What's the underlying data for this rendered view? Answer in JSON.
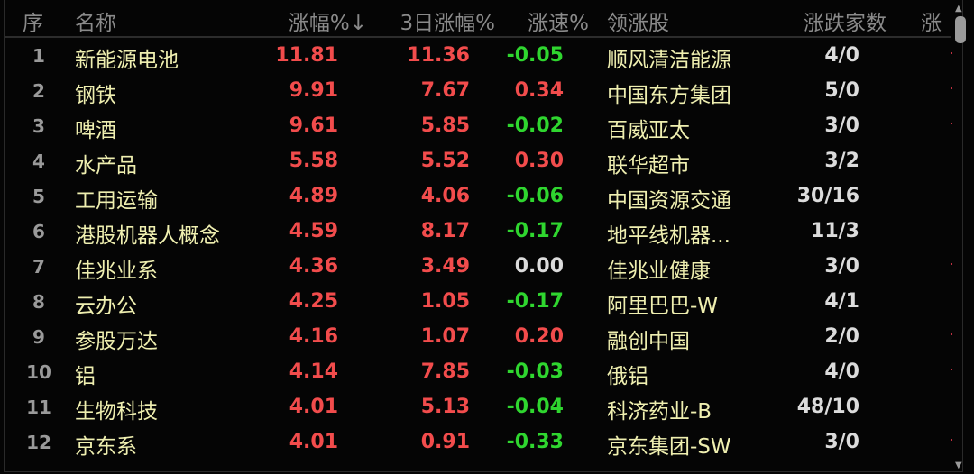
{
  "header": {
    "idx": "序",
    "name": "名称",
    "change": "涨幅%↓",
    "change3d": "3日涨幅%",
    "speed": "涨速%",
    "leader": "领涨股",
    "updown": "涨跌家数",
    "more": "涨"
  },
  "colors": {
    "up": "#f24c4c",
    "down": "#2fd62f",
    "flat": "#dcdcdc",
    "name": "#efefb0",
    "background": "#050505"
  },
  "rows": [
    {
      "idx": "1",
      "name": "新能源电池",
      "change": "11.81",
      "change3d": "11.36",
      "speed": "-0.05",
      "leader": "顺风清洁能源",
      "updown": "4/0"
    },
    {
      "idx": "2",
      "name": "钢铁",
      "change": "9.91",
      "change3d": "7.67",
      "speed": "0.34",
      "leader": "中国东方集团",
      "updown": "5/0"
    },
    {
      "idx": "3",
      "name": "啤酒",
      "change": "9.61",
      "change3d": "5.85",
      "speed": "-0.02",
      "leader": "百威亚太",
      "updown": "3/0"
    },
    {
      "idx": "4",
      "name": "水产品",
      "change": "5.58",
      "change3d": "5.52",
      "speed": "0.30",
      "leader": "联华超市",
      "updown": "3/2"
    },
    {
      "idx": "5",
      "name": "工用运输",
      "change": "4.89",
      "change3d": "4.06",
      "speed": "-0.06",
      "leader": "中国资源交通",
      "updown": "30/16"
    },
    {
      "idx": "6",
      "name": "港股机器人概念",
      "change": "4.59",
      "change3d": "8.17",
      "speed": "-0.17",
      "leader": "地平线机器...",
      "updown": "11/3"
    },
    {
      "idx": "7",
      "name": "佳兆业系",
      "change": "4.36",
      "change3d": "3.49",
      "speed": "0.00",
      "leader": "佳兆业健康",
      "updown": "3/0"
    },
    {
      "idx": "8",
      "name": "云办公",
      "change": "4.25",
      "change3d": "1.05",
      "speed": "-0.17",
      "leader": "阿里巴巴-W",
      "updown": "4/1"
    },
    {
      "idx": "9",
      "name": "参股万达",
      "change": "4.16",
      "change3d": "1.07",
      "speed": "0.20",
      "leader": "融创中国",
      "updown": "2/0"
    },
    {
      "idx": "10",
      "name": "铝",
      "change": "4.14",
      "change3d": "7.85",
      "speed": "-0.03",
      "leader": "俄铝",
      "updown": "4/0"
    },
    {
      "idx": "11",
      "name": "生物科技",
      "change": "4.01",
      "change3d": "5.13",
      "speed": "-0.04",
      "leader": "科济药业-B",
      "updown": "48/10"
    },
    {
      "idx": "12",
      "name": "京东系",
      "change": "4.01",
      "change3d": "0.91",
      "speed": "-0.33",
      "leader": "京东集团-SW",
      "updown": "3/0"
    }
  ]
}
